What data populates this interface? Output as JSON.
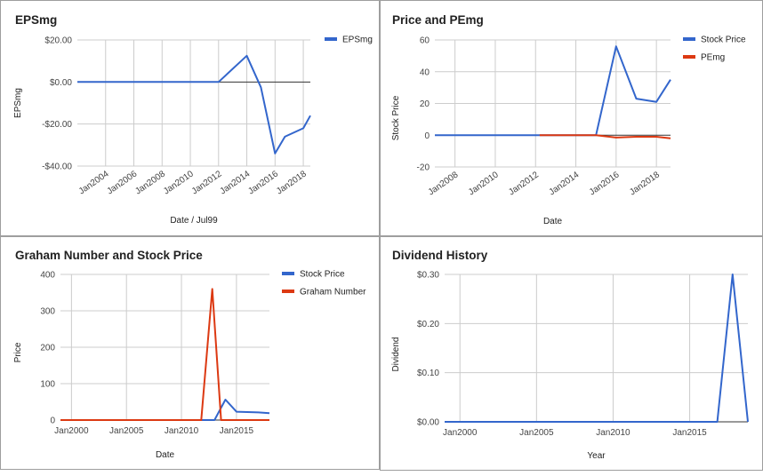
{
  "colors": {
    "blue": "#3366cc",
    "orange": "#dc3912",
    "grid": "#cccccc",
    "baseline": "#333333"
  },
  "chart_data": [
    {
      "id": "eps",
      "type": "line",
      "title": "EPSmg",
      "xlabel": "Date / Jul99",
      "ylabel": "EPSmg",
      "ylim": [
        -40,
        20
      ],
      "yticks": [
        -40,
        -20,
        0,
        20
      ],
      "ytick_labels": [
        "-$40.00",
        "-$20.00",
        "$0.00",
        "$20.00"
      ],
      "xlim": [
        2002,
        2018.5
      ],
      "xticks": [
        2004,
        2006,
        2008,
        2010,
        2012,
        2014,
        2016,
        2018
      ],
      "xtick_labels": [
        "Jan2004",
        "Jan2006",
        "Jan2008",
        "Jan2010",
        "Jan2012",
        "Jan2014",
        "Jan2016",
        "Jan2018"
      ],
      "x_labels_rotated": true,
      "legend": "right",
      "grid": true,
      "series": [
        {
          "name": "EPSmg",
          "color": "blue",
          "points": [
            [
              2002,
              0
            ],
            [
              2012,
              0
            ],
            [
              2014,
              12.5
            ],
            [
              2015,
              -2.5
            ],
            [
              2016,
              -34
            ],
            [
              2016.7,
              -26
            ],
            [
              2018,
              -22
            ],
            [
              2018.5,
              -16
            ]
          ]
        }
      ]
    },
    {
      "id": "pe",
      "type": "line",
      "title": "Price and PEmg",
      "xlabel": "Date",
      "ylabel": "Stock Price",
      "ylim": [
        -20,
        60
      ],
      "yticks": [
        -20,
        0,
        20,
        40,
        60
      ],
      "ytick_labels": [
        "-20",
        "0",
        "20",
        "40",
        "60"
      ],
      "xlim": [
        2007,
        2018.7
      ],
      "xticks": [
        2008,
        2010,
        2012,
        2014,
        2016,
        2018
      ],
      "xtick_labels": [
        "Jan2008",
        "Jan2010",
        "Jan2012",
        "Jan2014",
        "Jan2016",
        "Jan2018"
      ],
      "x_labels_rotated": true,
      "legend": "right",
      "grid": true,
      "series": [
        {
          "name": "Stock Price",
          "color": "blue",
          "points": [
            [
              2007,
              0
            ],
            [
              2015,
              0
            ],
            [
              2016,
              56
            ],
            [
              2017,
              23
            ],
            [
              2018,
              21
            ],
            [
              2018.7,
              35
            ]
          ]
        },
        {
          "name": "PEmg",
          "color": "orange",
          "points": [
            [
              2012.2,
              0
            ],
            [
              2015,
              0
            ],
            [
              2016,
              -1.5
            ],
            [
              2017,
              -1
            ],
            [
              2018,
              -1
            ],
            [
              2018.7,
              -2
            ]
          ]
        }
      ]
    },
    {
      "id": "graham",
      "type": "line",
      "title": "Graham Number and Stock Price",
      "xlabel": "Date",
      "ylabel": "Price",
      "ylim": [
        0,
        400
      ],
      "yticks": [
        0,
        100,
        200,
        300,
        400
      ],
      "ytick_labels": [
        "0",
        "100",
        "200",
        "300",
        "400"
      ],
      "xlim": [
        1999,
        2018
      ],
      "xticks": [
        2000,
        2005,
        2010,
        2015
      ],
      "xtick_labels": [
        "Jan2000",
        "Jan2005",
        "Jan2010",
        "Jan2015"
      ],
      "x_labels_rotated": false,
      "legend": "right",
      "grid": true,
      "series": [
        {
          "name": "Stock Price",
          "color": "blue",
          "points": [
            [
              1999,
              0
            ],
            [
              2013,
              0
            ],
            [
              2014,
              56
            ],
            [
              2015,
              23
            ],
            [
              2017,
              21
            ],
            [
              2018,
              19
            ]
          ]
        },
        {
          "name": "Graham Number",
          "color": "orange",
          "points": [
            [
              1999,
              0
            ],
            [
              2011.8,
              0
            ],
            [
              2012.8,
              360
            ],
            [
              2013.6,
              0
            ],
            [
              2018,
              0
            ]
          ]
        }
      ]
    },
    {
      "id": "dividend",
      "type": "line",
      "title": "Dividend History",
      "xlabel": "Year",
      "ylabel": "Dividend",
      "ylim": [
        0,
        0.3
      ],
      "yticks": [
        0,
        0.1,
        0.2,
        0.3
      ],
      "ytick_labels": [
        "$0.00",
        "$0.10",
        "$0.20",
        "$0.30"
      ],
      "xlim": [
        1999,
        2018.8
      ],
      "xticks": [
        2000,
        2005,
        2010,
        2015
      ],
      "xtick_labels": [
        "Jan2000",
        "Jan2005",
        "Jan2010",
        "Jan2015"
      ],
      "x_labels_rotated": false,
      "legend": "none",
      "grid": true,
      "series": [
        {
          "name": "",
          "color": "blue",
          "points": [
            [
              1999,
              0
            ],
            [
              2016.8,
              0
            ],
            [
              2017.8,
              0.3
            ],
            [
              2018.8,
              0
            ]
          ]
        }
      ]
    }
  ]
}
